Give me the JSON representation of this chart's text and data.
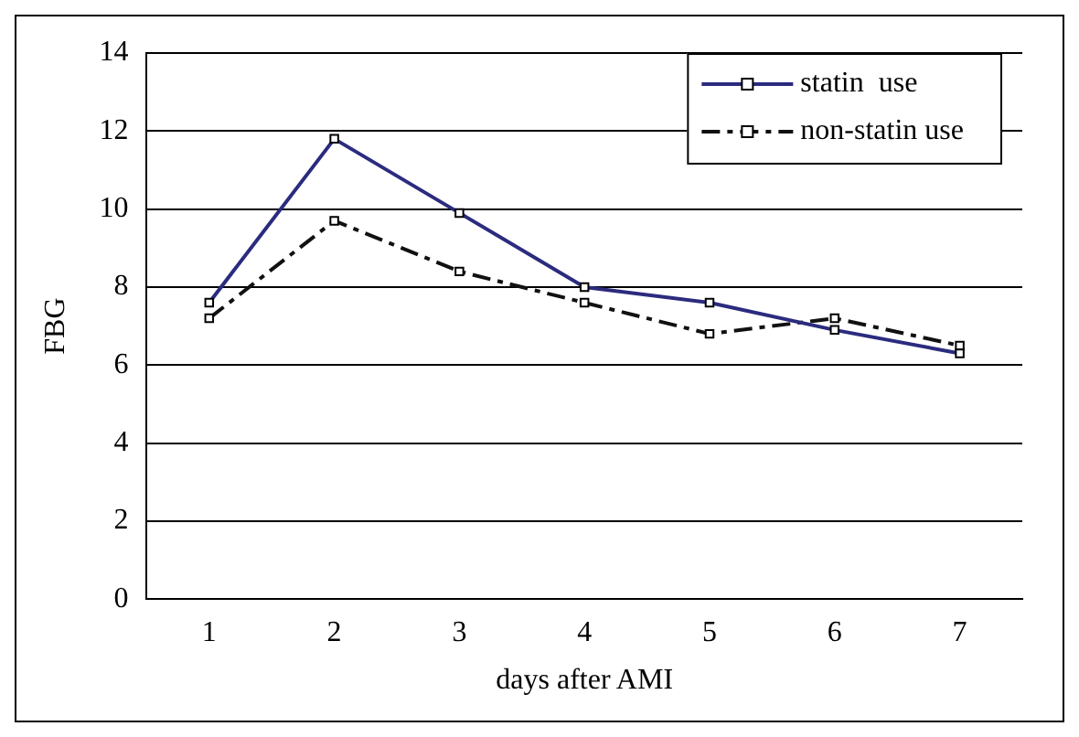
{
  "chart_data": {
    "type": "line",
    "xlabel": "days after AMI",
    "ylabel": "FBG",
    "categories": [
      "1",
      "2",
      "3",
      "4",
      "5",
      "6",
      "7"
    ],
    "series": [
      {
        "name": "statin  use",
        "color": "#2b2b7f",
        "values": [
          7.6,
          11.8,
          9.9,
          8.0,
          7.6,
          6.9,
          6.3
        ],
        "line_style": "solid"
      },
      {
        "name": "non-statin use",
        "color": "#111111",
        "values": [
          7.2,
          9.7,
          8.4,
          7.6,
          6.8,
          7.2,
          6.5
        ],
        "line_style": "dashed"
      }
    ],
    "ylim": [
      0,
      14
    ],
    "yticks": [
      0,
      2,
      4,
      6,
      8,
      10,
      12,
      14
    ],
    "grid": "y",
    "legend": "top right",
    "marker": "square"
  }
}
